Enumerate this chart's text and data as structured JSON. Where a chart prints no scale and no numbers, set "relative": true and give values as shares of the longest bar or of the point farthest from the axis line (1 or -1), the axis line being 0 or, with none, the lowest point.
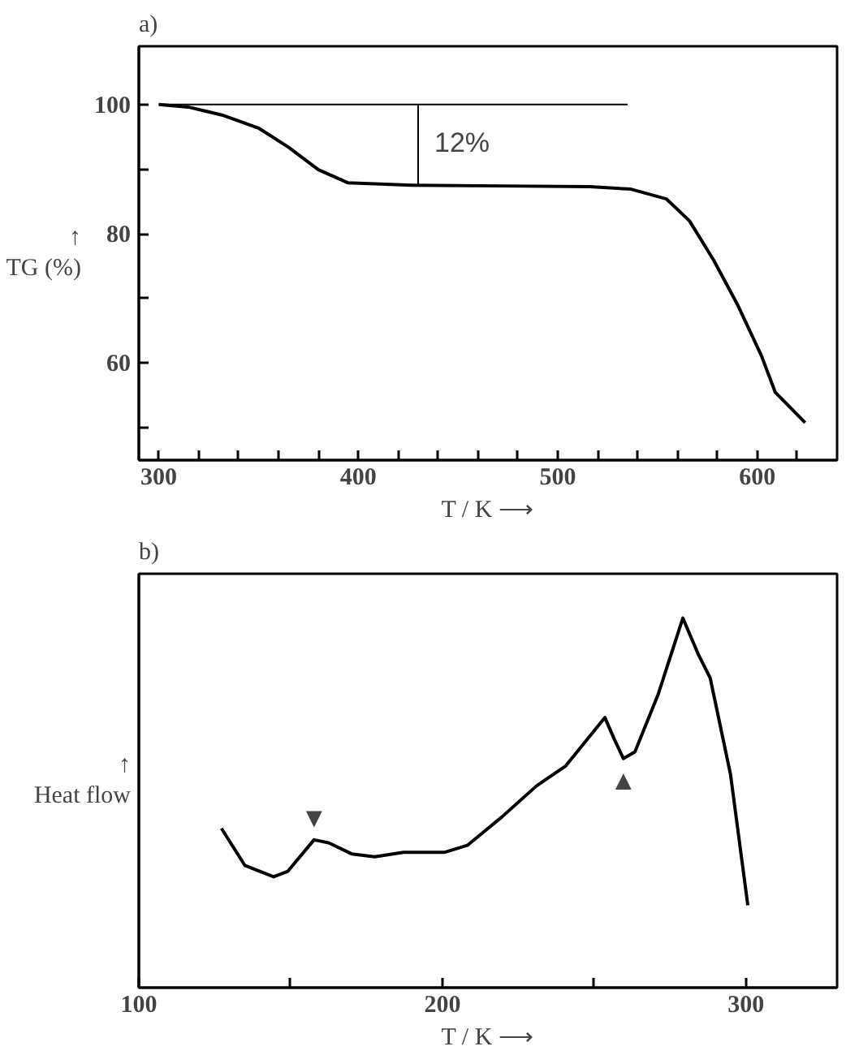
{
  "chart_data": [
    {
      "type": "line",
      "title": "a)",
      "xlabel": "T / K ⟶",
      "ylabel": "↑\nTG (%)",
      "xlim": [
        290,
        640
      ],
      "ylim": [
        45,
        109
      ],
      "xticks": [
        300,
        {
          "value": 320,
          "label": null
        },
        {
          "value": 340,
          "label": null
        },
        {
          "value": 360,
          "label": null
        },
        {
          "value": 380,
          "label": null
        },
        400,
        {
          "value": 420,
          "label": null
        },
        {
          "value": 440,
          "label": null
        },
        {
          "value": 460,
          "label": null
        },
        {
          "value": 480,
          "label": null
        },
        500,
        {
          "value": 520,
          "label": null
        },
        {
          "value": 540,
          "label": null
        },
        {
          "value": 560,
          "label": null
        },
        {
          "value": 580,
          "label": null
        },
        600,
        {
          "value": 620,
          "label": null
        }
      ],
      "yticks": [
        {
          "value": 50,
          "label": null
        },
        60,
        {
          "value": 70,
          "label": null
        },
        80,
        {
          "value": 90,
          "label": null
        },
        100
      ],
      "grid": false,
      "marker": "none",
      "line_style": "solid",
      "annotations": [
        {
          "text": "12%",
          "x": 430,
          "y": 100
        }
      ],
      "series": [
        {
          "color": "#000000",
          "x": [
            300,
            314.8,
            332.5,
            350.3,
            365,
            380,
            394.7,
            427,
            471.6,
            516,
            536.7,
            554.4,
            566,
            578,
            590,
            602,
            609,
            624
          ],
          "values": [
            100,
            99.6,
            98.3,
            96.3,
            93.4,
            89.9,
            87.9,
            87.5,
            87.4,
            87.3,
            86.9,
            85.4,
            82,
            76,
            69.1,
            61.2,
            55.5,
            50.8
          ]
        },
        {
          "color": "#000000",
          "x": [
            300,
            535
          ],
          "values": [
            100,
            100
          ]
        },
        {
          "color": "#000000",
          "x": [
            430,
            430
          ],
          "values": [
            100,
            87.5
          ]
        }
      ]
    },
    {
      "type": "line",
      "title": "b)",
      "xlabel": "T / K ⟶",
      "ylabel": "↑\nHeat flow",
      "xlim": [
        100,
        330
      ],
      "relative": true,
      "xticks": [
        100,
        {
          "value": 150,
          "label": null
        },
        200,
        {
          "value": 250,
          "label": null
        },
        300
      ],
      "grid": false,
      "marker": "none",
      "line_style": "solid",
      "annotations": [
        {
          "text": "▼",
          "x": 157.7,
          "y": 0.4
        },
        {
          "text": "▲",
          "x": 259.6,
          "y": 0.62
        }
      ],
      "series": [
        {
          "color": "#000000",
          "x": [
            127.2,
            134.9,
            144.4,
            149.1,
            157.7,
            162.5,
            170.1,
            177.7,
            187.2,
            200.6,
            208.2,
            219.6,
            231,
            240.6,
            248.2,
            253.5,
            256.8,
            259.6,
            263.4,
            271,
            279.2,
            284.4,
            288.2,
            294.9,
            300.6
          ],
          "values": [
            0.431,
            0.331,
            0.3,
            0.315,
            0.4,
            0.392,
            0.362,
            0.354,
            0.366,
            0.366,
            0.385,
            0.462,
            0.546,
            0.6,
            0.677,
            0.731,
            0.669,
            0.62,
            0.638,
            0.792,
            1.0,
            0.9,
            0.838,
            0.577,
            0.223
          ]
        }
      ]
    }
  ]
}
